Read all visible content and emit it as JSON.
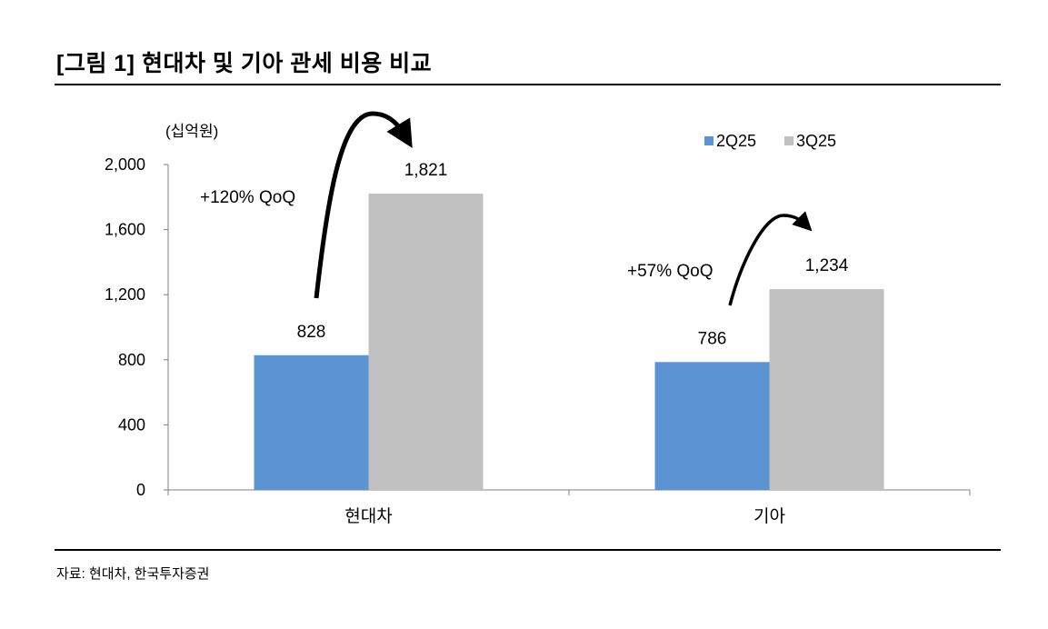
{
  "title": "[그림 1] 현대차 및 기아 관세 비용 비교",
  "source": "자료: 현대차, 한국투자증권",
  "chart_data": {
    "type": "bar",
    "unit_label": "(십억원)",
    "categories": [
      "현대차",
      "기아"
    ],
    "series": [
      {
        "name": "2Q25",
        "values": [
          828,
          786
        ],
        "color": "#5b93d3",
        "labels": [
          "828",
          "786"
        ]
      },
      {
        "name": "3Q25",
        "values": [
          1821,
          1234
        ],
        "color": "#c0c0c0",
        "labels": [
          "1,821",
          "1,234"
        ]
      }
    ],
    "ylim": [
      0,
      2000
    ],
    "yticks": [
      0,
      400,
      800,
      1200,
      1600,
      2000
    ],
    "ytick_labels": [
      "0",
      "400",
      "800",
      "1,200",
      "1,600",
      "2,000"
    ],
    "grid": false,
    "legend_position": "top-right",
    "annotations": [
      "+120% QoQ",
      "+57% QoQ"
    ]
  }
}
